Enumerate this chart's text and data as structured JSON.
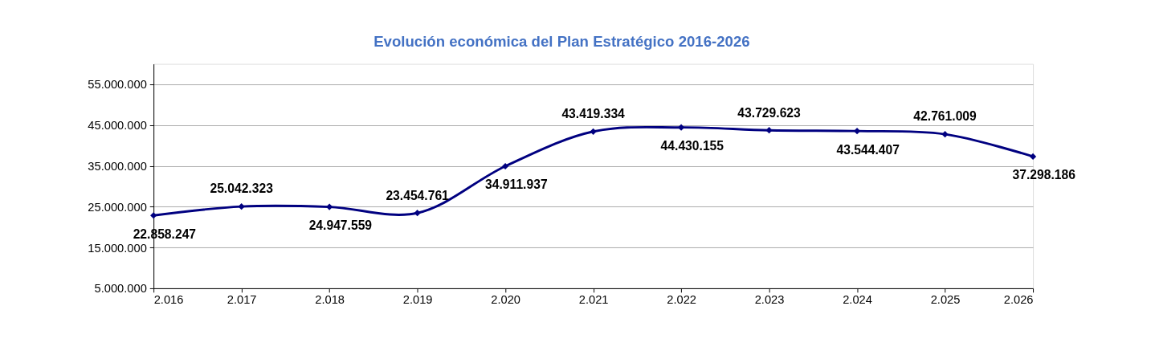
{
  "chart_data": {
    "type": "line",
    "title": "Evolución económica del Plan Estratégico 2016-2026",
    "x": [
      2016,
      2017,
      2018,
      2019,
      2020,
      2021,
      2022,
      2023,
      2024,
      2025,
      2026
    ],
    "series": [
      {
        "color": "#000080",
        "values": [
          22858247,
          25042323,
          24947559,
          23454761,
          34911937,
          43419334,
          44430155,
          43729623,
          43544407,
          42761009,
          37298186
        ],
        "value_labels": [
          "22.858.247",
          "25.042.323",
          "24.947.559",
          "23.454.761",
          "34.911.937",
          "43.419.334",
          "44.430.155",
          "43.729.623",
          "43.544.407",
          "42.761.009",
          "37.298.186"
        ]
      }
    ],
    "xlim": [
      2016,
      2026
    ],
    "xticks": [
      {
        "value": 2016,
        "label": "2.016"
      },
      {
        "value": 2017,
        "label": "2.017"
      },
      {
        "value": 2018,
        "label": "2.018"
      },
      {
        "value": 2019,
        "label": "2.019"
      },
      {
        "value": 2020,
        "label": "2.020"
      },
      {
        "value": 2021,
        "label": "2.021"
      },
      {
        "value": 2022,
        "label": "2.022"
      },
      {
        "value": 2023,
        "label": "2.023"
      },
      {
        "value": 2024,
        "label": "2.024"
      },
      {
        "value": 2025,
        "label": "2.025"
      },
      {
        "value": 2026,
        "label": "2.026"
      }
    ],
    "ylim": [
      5000000,
      60000000
    ],
    "yticks": [
      {
        "value": 5000000,
        "label": "5.000.000"
      },
      {
        "value": 15000000,
        "label": "15.000.000"
      },
      {
        "value": 25000000,
        "label": "25.000.000"
      },
      {
        "value": 35000000,
        "label": "35.000.000"
      },
      {
        "value": 45000000,
        "label": "45.000.000"
      },
      {
        "value": 55000000,
        "label": "55.000.000"
      }
    ],
    "grid": "y",
    "marker": "diamond",
    "line_style": "solid"
  }
}
